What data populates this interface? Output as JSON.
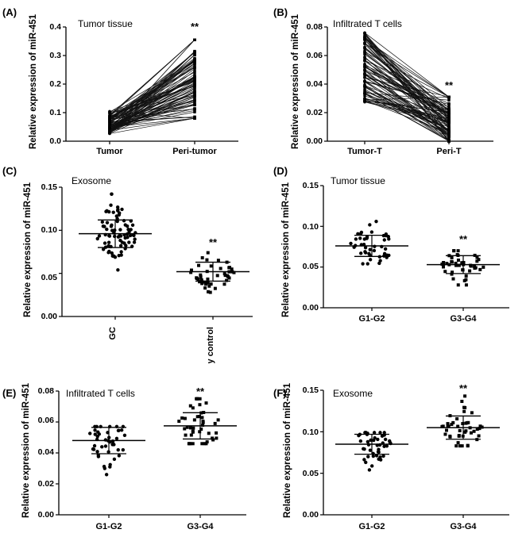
{
  "figure": {
    "ylabel": "Relative expression of miR-451",
    "significance": "**"
  },
  "chart_data": [
    {
      "id": "A",
      "label": "(A)",
      "type": "line",
      "title": "Tumor tissue",
      "ylabel": "Relative expression of miR-451",
      "categories": [
        "Tumor",
        "Peri-tumor"
      ],
      "ylim": [
        0,
        0.4
      ],
      "yticks": [
        "0.0",
        "0.1",
        "0.2",
        "0.3",
        "0.4"
      ],
      "significance": "**",
      "paired": {
        "n": 90,
        "start_range": [
          0.025,
          0.105
        ],
        "end_range": [
          0.08,
          0.355
        ],
        "seed": 11
      }
    },
    {
      "id": "B",
      "label": "(B)",
      "type": "line",
      "title": "Infiltrated T cells",
      "ylabel": "Relative expression of miR-451",
      "categories": [
        "Tumor-T",
        "Peri-T"
      ],
      "ylim": [
        0,
        0.08
      ],
      "yticks": [
        "0.00",
        "0.02",
        "0.04",
        "0.06",
        "0.08"
      ],
      "significance": "**",
      "paired": {
        "n": 90,
        "start_range": [
          0.026,
          0.076
        ],
        "end_range": [
          0.0,
          0.031
        ],
        "seed": 23
      }
    },
    {
      "id": "C",
      "label": "(C)",
      "type": "scatter",
      "title": "Exosome",
      "ylabel": "Relative expression of miR-451",
      "categories": [
        "GC",
        "Healthy control"
      ],
      "ylim": [
        0,
        0.15
      ],
      "yticks": [
        "0.00",
        "0.05",
        "0.10",
        "0.15"
      ],
      "significance": "**",
      "rotated_labels": true,
      "groups": [
        {
          "name": "GC",
          "n": 80,
          "mean": 0.096,
          "sd": 0.016,
          "min": 0.054,
          "max": 0.142,
          "seed": 31
        },
        {
          "name": "Healthy control",
          "n": 44,
          "mean": 0.052,
          "sd": 0.011,
          "min": 0.028,
          "max": 0.074,
          "seed": 37
        }
      ]
    },
    {
      "id": "D",
      "label": "(D)",
      "type": "scatter",
      "title": "Tumor tissue",
      "ylabel": "Relative expression of miR-451",
      "categories": [
        "G1-G2",
        "G3-G4"
      ],
      "ylim": [
        0,
        0.15
      ],
      "yticks": [
        "0.00",
        "0.05",
        "0.10",
        "0.15"
      ],
      "significance": "**",
      "groups": [
        {
          "name": "G1-G2",
          "n": 45,
          "mean": 0.076,
          "sd": 0.013,
          "min": 0.054,
          "max": 0.106,
          "seed": 41
        },
        {
          "name": "G3-G4",
          "n": 45,
          "mean": 0.053,
          "sd": 0.011,
          "min": 0.028,
          "max": 0.07,
          "seed": 43
        }
      ]
    },
    {
      "id": "E",
      "label": "(E)",
      "type": "scatter",
      "title": "Infiltrated T cells",
      "ylabel": "Relative expression of miR-451",
      "categories": [
        "G1-G2",
        "G3-G4"
      ],
      "ylim": [
        0,
        0.08
      ],
      "yticks": [
        "0.00",
        "0.02",
        "0.04",
        "0.06",
        "0.08"
      ],
      "significance": "**",
      "groups": [
        {
          "name": "G1-G2",
          "n": 45,
          "mean": 0.048,
          "sd": 0.0085,
          "min": 0.026,
          "max": 0.057,
          "seed": 53
        },
        {
          "name": "G3-G4",
          "n": 45,
          "mean": 0.0575,
          "sd": 0.0085,
          "min": 0.046,
          "max": 0.075,
          "seed": 59
        }
      ]
    },
    {
      "id": "F",
      "label": "(F)",
      "type": "scatter",
      "title": "Exosome",
      "ylabel": "Relative expression of miR-451",
      "categories": [
        "G1-G2",
        "G3-G4"
      ],
      "ylim": [
        0,
        0.15
      ],
      "yticks": [
        "0.00",
        "0.05",
        "0.10",
        "0.15"
      ],
      "significance": "**",
      "groups": [
        {
          "name": "G1-G2",
          "n": 45,
          "mean": 0.085,
          "sd": 0.012,
          "min": 0.054,
          "max": 0.099,
          "seed": 61
        },
        {
          "name": "G3-G4",
          "n": 45,
          "mean": 0.105,
          "sd": 0.014,
          "min": 0.083,
          "max": 0.143,
          "seed": 67
        }
      ]
    }
  ]
}
